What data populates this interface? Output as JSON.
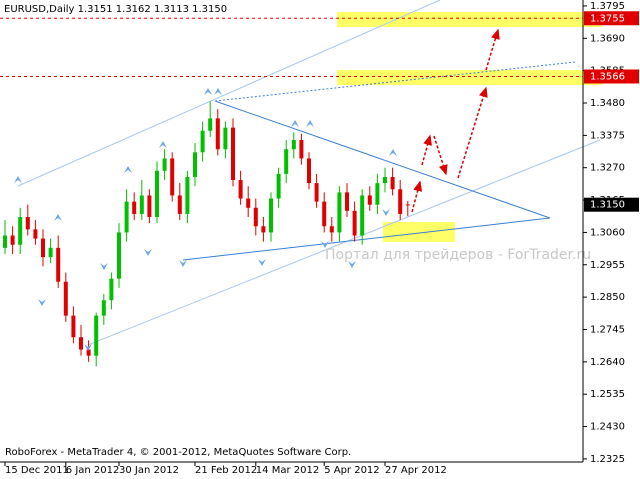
{
  "chart_data": {
    "type": "candlestick",
    "title": "EURUSD,Daily  1.3151 1.3162 1.3113 1.3150",
    "categories": [
      "15 Dec 2011",
      null,
      null,
      null,
      null,
      null,
      null,
      null,
      "6 Jan 2012",
      null,
      null,
      null,
      null,
      null,
      null,
      "30 Jan 2012",
      null,
      null,
      null,
      null,
      null,
      null,
      null,
      null,
      null,
      "21 Feb 2012",
      null,
      null,
      null,
      null,
      null,
      null,
      null,
      "14 Mar 2012",
      null,
      null,
      null,
      null,
      null,
      null,
      null,
      null,
      "5 Apr 2012",
      null,
      null,
      null,
      null,
      null,
      null,
      null,
      "27 Apr 2012",
      null,
      null,
      null
    ],
    "open": [
      1.301,
      1.305,
      1.302,
      1.311,
      1.307,
      1.304,
      1.298,
      1.301,
      1.29,
      1.279,
      1.272,
      1.268,
      1.266,
      1.279,
      1.284,
      1.291,
      1.306,
      1.316,
      1.312,
      1.318,
      1.311,
      1.326,
      1.33,
      1.318,
      1.312,
      1.324,
      1.332,
      1.339,
      1.343,
      1.333,
      1.34,
      1.323,
      1.317,
      1.314,
      1.308,
      1.306,
      1.317,
      1.325,
      1.333,
      1.336,
      1.33,
      1.322,
      1.316,
      1.308,
      1.306,
      1.319,
      1.313,
      1.305,
      1.318,
      1.315,
      1.322,
      1.324,
      1.32,
      1.3151
    ],
    "high": [
      1.31,
      1.308,
      1.314,
      1.315,
      1.31,
      1.307,
      1.304,
      1.305,
      1.293,
      1.282,
      1.276,
      1.271,
      1.28,
      1.286,
      1.293,
      1.309,
      1.32,
      1.319,
      1.323,
      1.32,
      1.329,
      1.333,
      1.332,
      1.322,
      1.326,
      1.335,
      1.342,
      1.3485,
      1.346,
      1.342,
      1.343,
      1.326,
      1.321,
      1.317,
      1.311,
      1.319,
      1.327,
      1.336,
      1.3385,
      1.338,
      1.332,
      1.325,
      1.319,
      1.311,
      1.321,
      1.322,
      1.316,
      1.32,
      1.321,
      1.325,
      1.327,
      1.327,
      1.323,
      1.3162
    ],
    "low": [
      1.299,
      1.299,
      1.299,
      1.305,
      1.302,
      1.295,
      1.296,
      1.288,
      1.277,
      1.27,
      1.266,
      1.264,
      1.2625,
      1.276,
      1.281,
      1.288,
      1.303,
      1.31,
      1.31,
      1.309,
      1.309,
      1.323,
      1.316,
      1.31,
      1.309,
      1.321,
      1.329,
      1.337,
      1.331,
      1.33,
      1.321,
      1.315,
      1.311,
      1.305,
      1.303,
      1.303,
      1.314,
      1.322,
      1.33,
      1.328,
      1.32,
      1.314,
      1.306,
      1.303,
      1.303,
      1.311,
      1.303,
      1.302,
      1.313,
      1.312,
      1.319,
      1.318,
      1.31,
      1.3113
    ],
    "close": [
      1.305,
      1.302,
      1.311,
      1.307,
      1.304,
      1.298,
      1.301,
      1.29,
      1.279,
      1.272,
      1.268,
      1.266,
      1.279,
      1.284,
      1.291,
      1.306,
      1.316,
      1.312,
      1.318,
      1.311,
      1.326,
      1.33,
      1.318,
      1.312,
      1.324,
      1.332,
      1.339,
      1.343,
      1.333,
      1.34,
      1.323,
      1.317,
      1.314,
      1.308,
      1.306,
      1.317,
      1.325,
      1.333,
      1.336,
      1.33,
      1.322,
      1.316,
      1.308,
      1.306,
      1.319,
      1.313,
      1.305,
      1.318,
      1.315,
      1.322,
      1.324,
      1.32,
      1.312,
      1.315
    ],
    "up_color": "#00c000",
    "down_color": "#e00000",
    "ylim": [
      1.2315,
      1.3811
    ],
    "yticks": [
      1.3795,
      {
        "value": 1.369,
        "label": "1.3690"
      },
      1.3585,
      {
        "value": 1.348,
        "label": "1.3480"
      },
      1.3375,
      {
        "value": 1.327,
        "label": "1.3270"
      },
      1.3165,
      {
        "value": 1.306,
        "label": "1.3060"
      },
      1.2955,
      {
        "value": 1.285,
        "label": "1.2850"
      },
      1.2745,
      {
        "value": 1.264,
        "label": "1.2640"
      },
      1.2535,
      {
        "value": 1.243,
        "label": "1.2430"
      },
      1.2325
    ],
    "levels": [
      {
        "value": 1.3755,
        "label": "1.3755",
        "color": "#e00000"
      },
      {
        "value": 1.3566,
        "label": "1.3566",
        "color": "#e00000"
      },
      {
        "value": 1.315,
        "label": "1.3150",
        "color": "#000000"
      }
    ]
  },
  "watermark": "Портал для трейдеров - ForTrader.ru",
  "footer": "RoboForex - MetaTrader 4, © 2001-2012, MetaQuotes Software Corp."
}
